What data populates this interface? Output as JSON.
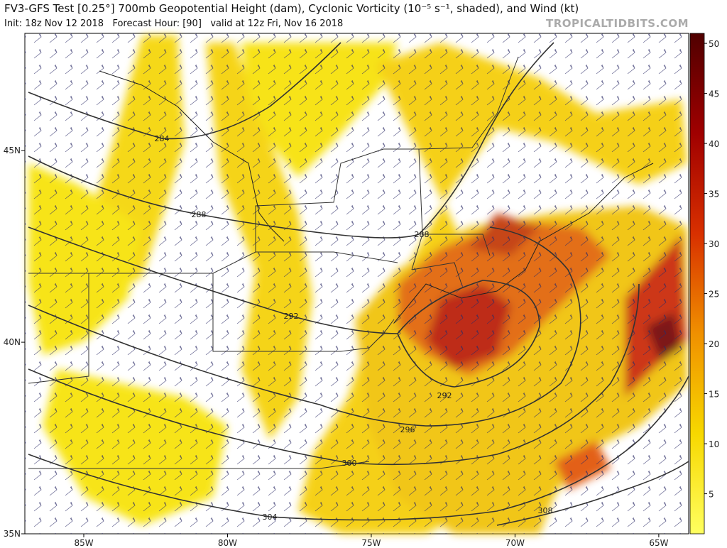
{
  "header": {
    "title": "FV3-GFS Test [0.25°] 700mb Geopotential Height (dam), Cyclonic Vorticity (10⁻⁵ s⁻¹, shaded), and Wind (kt)",
    "init": "Init: 18z Nov 12 2018",
    "forecast_hour": "Forecast Hour: [90]",
    "valid": "valid at 12z Fri, Nov 16 2018",
    "site": "TROPICALTIDBITS.COM"
  },
  "map": {
    "lonlim": [
      -87.05,
      -63.96
    ],
    "latlim": [
      35,
      48.06
    ],
    "lon_ticks": [
      {
        "value": -85,
        "label": "85W"
      },
      {
        "value": -80,
        "label": "80W"
      },
      {
        "value": -75,
        "label": "75W"
      },
      {
        "value": -70,
        "label": "70W"
      },
      {
        "value": -65,
        "label": "65W"
      }
    ],
    "lat_ticks": [
      {
        "value": 45,
        "label": "45N"
      },
      {
        "value": 40,
        "label": "40N"
      },
      {
        "value": 35,
        "label": "35N"
      }
    ],
    "contour_labels": [
      "284",
      "288",
      "288",
      "292",
      "292",
      "296",
      "300",
      "304",
      "308"
    ]
  },
  "colorbar": {
    "lim": [
      1,
      51
    ],
    "ticks": [
      5,
      10,
      15,
      20,
      25,
      30,
      35,
      40,
      45,
      50
    ]
  }
}
